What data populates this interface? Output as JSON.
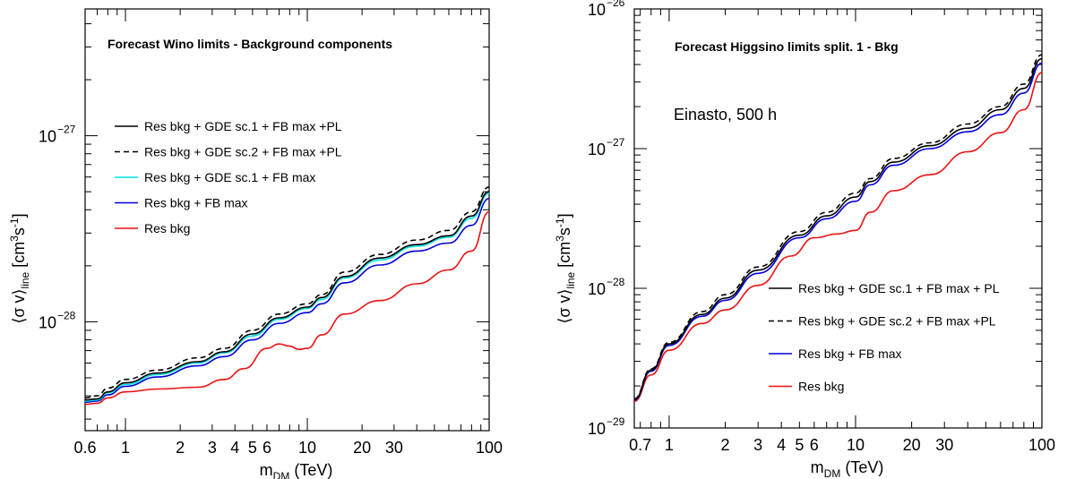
{
  "chart_data": [
    {
      "type": "line",
      "title": "Forecast Wino limits - Background components",
      "xlabel": "m",
      "xlabel_sub": "DM",
      "xlabel_unit": " (TeV)",
      "ylabel_main": "⟨σ v⟩",
      "ylabel_sub": "line",
      "ylabel_unit": "[cm",
      "ylabel_sup3": "3",
      "ylabel_s": "s",
      "ylabel_supm1": "-1",
      "ylabel_close": "]",
      "xscale": "log",
      "yscale": "log",
      "xlim": [
        0.6,
        100
      ],
      "ylim": [
        2.6e-29,
        4.8e-27
      ],
      "x_tick_labels": [
        {
          "v": 0.6,
          "label": "0.6"
        },
        {
          "v": 1,
          "label": "1"
        },
        {
          "v": 2,
          "label": "2"
        },
        {
          "v": 3,
          "label": "3"
        },
        {
          "v": 4,
          "label": "4"
        },
        {
          "v": 5,
          "label": "5"
        },
        {
          "v": 6,
          "label": "6"
        },
        {
          "v": 10,
          "label": "10"
        },
        {
          "v": 20,
          "label": "20"
        },
        {
          "v": 30,
          "label": "30"
        },
        {
          "v": 100,
          "label": "100"
        }
      ],
      "y_tick_labels": [
        {
          "v": 1e-28,
          "base": "10",
          "exp": "−28"
        },
        {
          "v": 1e-27,
          "base": "10",
          "exp": "−27"
        }
      ],
      "legend_position": "top-left",
      "series": [
        {
          "name": "Res bkg + GDE sc.1 + FB max +PL",
          "color": "#000000",
          "dash": "solid",
          "x": [
            0.6,
            0.7,
            0.8,
            1.0,
            1.5,
            2.5,
            3.5,
            5,
            7,
            10,
            12,
            16,
            25,
            40,
            60,
            80,
            100
          ],
          "y": [
            3.8e-29,
            3.85e-29,
            4.2e-29,
            4.7e-29,
            5.3e-29,
            6.1e-29,
            6.9e-29,
            8.6e-29,
            1.05e-28,
            1.2e-28,
            1.35e-28,
            1.75e-28,
            2.2e-28,
            2.6e-28,
            2.9e-28,
            3.7e-28,
            5e-28
          ]
        },
        {
          "name": "Res bkg + GDE sc.2 + FB max +PL",
          "color": "#000000",
          "dash": "dashed",
          "x": [
            0.6,
            0.7,
            0.8,
            1.0,
            1.5,
            2.5,
            3.5,
            5,
            7,
            10,
            12,
            16,
            25,
            40,
            60,
            80,
            100
          ],
          "y": [
            3.9e-29,
            4e-29,
            4.4e-29,
            4.9e-29,
            5.5e-29,
            6.4e-29,
            7.2e-29,
            9e-29,
            1.1e-28,
            1.25e-28,
            1.4e-28,
            1.85e-28,
            2.3e-28,
            2.75e-28,
            3.1e-28,
            3.9e-28,
            5.3e-28
          ]
        },
        {
          "name": "Res bkg + GDE sc.1 + FB max",
          "color": "#00e5e5",
          "dash": "solid",
          "x": [
            0.6,
            0.7,
            0.8,
            1.0,
            1.5,
            2.5,
            3.5,
            5,
            7,
            10,
            12,
            16,
            25,
            40,
            60,
            80,
            100
          ],
          "y": [
            3.75e-29,
            3.8e-29,
            4.15e-29,
            4.6e-29,
            5.2e-29,
            6e-29,
            6.8e-29,
            8.4e-29,
            1.03e-28,
            1.18e-28,
            1.32e-28,
            1.72e-28,
            2.15e-28,
            2.55e-28,
            2.85e-28,
            3.6e-28,
            4.9e-28
          ]
        },
        {
          "name": "Res bkg + FB max",
          "color": "#0000dd",
          "dash": "solid",
          "x": [
            0.6,
            0.7,
            0.8,
            1.0,
            1.5,
            2.5,
            3.5,
            5,
            7,
            10,
            12,
            16,
            25,
            40,
            60,
            80,
            100
          ],
          "y": [
            3.7e-29,
            3.75e-29,
            4.05e-29,
            4.5e-29,
            5.05e-29,
            5.8e-29,
            6.5e-29,
            8e-29,
            9.8e-29,
            1.12e-28,
            1.25e-28,
            1.62e-28,
            2.02e-28,
            2.4e-28,
            2.65e-28,
            3.3e-28,
            4.6e-28
          ]
        },
        {
          "name": "Res bkg",
          "color": "#ee1111",
          "dash": "solid",
          "x": [
            0.6,
            0.7,
            0.8,
            1.0,
            1.5,
            2.5,
            3.5,
            4.5,
            6,
            7,
            8,
            9,
            10,
            12,
            16,
            25,
            40,
            60,
            80,
            100
          ],
          "y": [
            3.6e-29,
            3.65e-29,
            3.9e-29,
            4.2e-29,
            4.35e-29,
            4.45e-29,
            4.9e-29,
            5.6e-29,
            7.2e-29,
            7.6e-29,
            7.4e-29,
            7.1e-29,
            7.2e-29,
            8.5e-29,
            1.1e-28,
            1.3e-28,
            1.6e-28,
            1.9e-28,
            2.4e-28,
            3.9e-28
          ]
        }
      ]
    },
    {
      "type": "line",
      "title": "Forecast Higgsino limits split. 1 - Bkg",
      "annotation": "Einasto, 500 h",
      "xlabel": "m",
      "xlabel_sub": "DM",
      "xlabel_unit": " (TeV)",
      "ylabel_main": "⟨σ v⟩",
      "ylabel_sub": "line",
      "ylabel_unit": "[cm",
      "ylabel_sup3": "3",
      "ylabel_s": "s",
      "ylabel_supm1": "-1",
      "ylabel_close": "]",
      "xscale": "log",
      "yscale": "log",
      "xlim": [
        0.65,
        100
      ],
      "ylim": [
        1e-29,
        1e-26
      ],
      "x_tick_labels": [
        {
          "v": 0.7,
          "label": "0.7"
        },
        {
          "v": 1,
          "label": "1"
        },
        {
          "v": 2,
          "label": "2"
        },
        {
          "v": 3,
          "label": "3"
        },
        {
          "v": 4,
          "label": "4"
        },
        {
          "v": 5,
          "label": "5"
        },
        {
          "v": 6,
          "label": "6"
        },
        {
          "v": 10,
          "label": "10"
        },
        {
          "v": 20,
          "label": "20"
        },
        {
          "v": 30,
          "label": "30"
        },
        {
          "v": 100,
          "label": "100"
        }
      ],
      "y_tick_labels": [
        {
          "v": 1e-29,
          "base": "10",
          "exp": "−29"
        },
        {
          "v": 1e-28,
          "base": "10",
          "exp": "−28"
        },
        {
          "v": 1e-27,
          "base": "10",
          "exp": "−27"
        },
        {
          "v": 1e-26,
          "base": "10",
          "exp": "−26"
        }
      ],
      "legend_position": "bottom-right",
      "series": [
        {
          "name": "Res bkg + GDE sc.1 + FB max + PL",
          "color": "#000000",
          "dash": "solid",
          "x": [
            0.65,
            0.8,
            1.0,
            1.5,
            2.0,
            3.0,
            5,
            7,
            10,
            12,
            16,
            25,
            40,
            60,
            80,
            100
          ],
          "y": [
            1.6e-29,
            2.6e-29,
            4e-29,
            6.5e-29,
            8.5e-29,
            1.35e-28,
            2.4e-28,
            3.3e-28,
            4.5e-28,
            5.8e-28,
            8e-28,
            1.05e-27,
            1.4e-27,
            1.9e-27,
            2.7e-27,
            4.4e-27
          ]
        },
        {
          "name": "Res bkg + GDE sc.2 + FB max +PL",
          "color": "#000000",
          "dash": "dashed",
          "x": [
            0.65,
            0.8,
            1.0,
            1.5,
            2.0,
            3.0,
            5,
            7,
            10,
            12,
            16,
            25,
            40,
            60,
            80,
            100
          ],
          "y": [
            1.62e-29,
            2.65e-29,
            4.1e-29,
            6.8e-29,
            9e-29,
            1.42e-28,
            2.55e-28,
            3.5e-28,
            4.8e-28,
            6.1e-28,
            8.5e-28,
            1.1e-27,
            1.5e-27,
            2e-27,
            2.9e-27,
            4.7e-27
          ]
        },
        {
          "name": "Res bkg + FB max",
          "color": "#0000dd",
          "dash": "solid",
          "x": [
            0.65,
            0.8,
            1.0,
            1.5,
            2.0,
            3.0,
            5,
            7,
            10,
            12,
            16,
            25,
            40,
            60,
            80,
            100
          ],
          "y": [
            1.58e-29,
            2.55e-29,
            3.9e-29,
            6.3e-29,
            8.2e-29,
            1.28e-28,
            2.3e-28,
            3.15e-28,
            4.2e-28,
            5.5e-28,
            7.6e-28,
            1e-27,
            1.32e-27,
            1.75e-27,
            2.5e-27,
            4.1e-27
          ]
        },
        {
          "name": "Res bkg",
          "color": "#ee1111",
          "dash": "solid",
          "x": [
            0.65,
            0.8,
            1.0,
            1.5,
            2.0,
            3.0,
            4.5,
            6,
            8,
            10,
            12,
            16,
            25,
            40,
            60,
            80,
            100
          ],
          "y": [
            1.55e-29,
            2.4e-29,
            3.6e-29,
            5.6e-29,
            7e-29,
            1.05e-28,
            1.7e-28,
            2.3e-28,
            2.45e-28,
            2.6e-28,
            3.5e-28,
            5e-28,
            6.5e-28,
            9.5e-28,
            1.3e-27,
            1.9e-27,
            3.5e-27
          ]
        }
      ]
    }
  ]
}
